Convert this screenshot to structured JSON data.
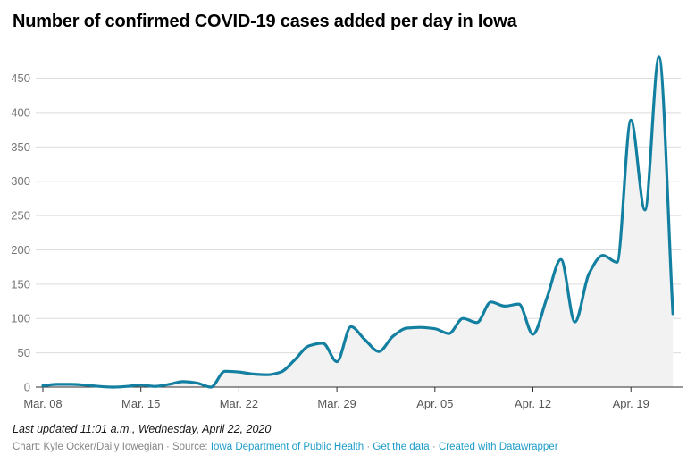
{
  "title": "Number of confirmed COVID-19 cases added per day in Iowa",
  "footer": {
    "updated": "Last updated 11:01 a.m., Wednesday, April 22, 2020",
    "chart_credit": "Chart: Kyle Ocker/Daily Iowegian",
    "source_label": "Source:",
    "source_link": "Iowa Department of Public Health",
    "get_data_link": "Get the data",
    "created_link": "Created with Datawrapper",
    "separator": "·"
  },
  "colors": {
    "line": "#1380a1",
    "area": "#f2f2f2",
    "grid": "#dcdcdc",
    "axis": "#2f2f2f",
    "y_label": "#767676",
    "x_label": "#555555",
    "link": "#1d9cc9"
  },
  "chart_data": {
    "type": "line",
    "title": "Number of confirmed COVID-19 cases added per day in Iowa",
    "xlabel": "",
    "ylabel": "",
    "smooth": true,
    "area_fill": true,
    "grid": true,
    "legend": "none",
    "ylim": [
      0,
      481
    ],
    "y_ticks": [
      0,
      50,
      100,
      150,
      200,
      250,
      300,
      350,
      400,
      450
    ],
    "x_ticks": [
      {
        "index": 0,
        "label": "Mar. 08"
      },
      {
        "index": 7,
        "label": "Mar. 15"
      },
      {
        "index": 14,
        "label": "Mar. 22"
      },
      {
        "index": 21,
        "label": "Mar. 29"
      },
      {
        "index": 28,
        "label": "Apr. 05"
      },
      {
        "index": 35,
        "label": "Apr. 12"
      },
      {
        "index": 42,
        "label": "Apr. 19"
      }
    ],
    "x": [
      "Mar. 08",
      "Mar. 09",
      "Mar. 10",
      "Mar. 11",
      "Mar. 12",
      "Mar. 13",
      "Mar. 14",
      "Mar. 15",
      "Mar. 16",
      "Mar. 17",
      "Mar. 18",
      "Mar. 19",
      "Mar. 20",
      "Mar. 21",
      "Mar. 22",
      "Mar. 23",
      "Mar. 24",
      "Mar. 25",
      "Mar. 26",
      "Mar. 27",
      "Mar. 28",
      "Mar. 29",
      "Mar. 30",
      "Mar. 31",
      "Apr. 01",
      "Apr. 02",
      "Apr. 03",
      "Apr. 04",
      "Apr. 05",
      "Apr. 06",
      "Apr. 07",
      "Apr. 08",
      "Apr. 09",
      "Apr. 10",
      "Apr. 11",
      "Apr. 12",
      "Apr. 13",
      "Apr. 14",
      "Apr. 15",
      "Apr. 16",
      "Apr. 17",
      "Apr. 18",
      "Apr. 19",
      "Apr. 20",
      "Apr. 21",
      "Apr. 22"
    ],
    "values": [
      2,
      4,
      4,
      3,
      1,
      0,
      1,
      3,
      1,
      4,
      8,
      6,
      0,
      23,
      22,
      19,
      18,
      22,
      40,
      60,
      64,
      37,
      88,
      69,
      52,
      74,
      86,
      87,
      85,
      78,
      100,
      94,
      124,
      118,
      121,
      77,
      130,
      186,
      95,
      165,
      192,
      182,
      389,
      258,
      481,
      107
    ]
  }
}
